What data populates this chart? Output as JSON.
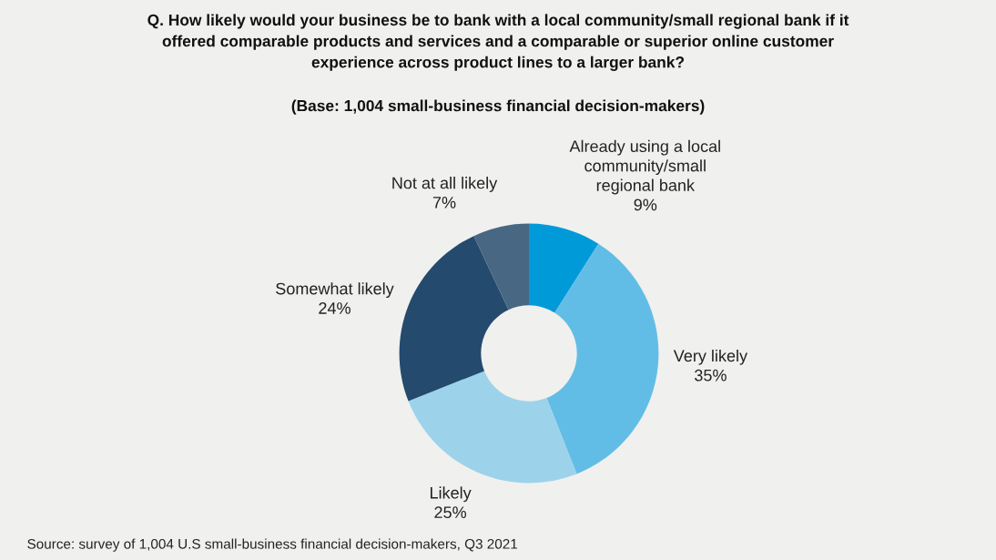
{
  "chart_data": {
    "type": "donut",
    "title": "Q. How likely would your business be to bank with a local community/small regional bank if it\noffered comparable products and services and a comparable or superior online customer\nexperience across product lines to a larger bank?",
    "subtitle": "(Base: 1,004 small-business financial decision-makers)",
    "categories": [
      "Already using a local\ncommunity/small\nregional bank",
      "Very likely",
      "Likely",
      "Somewhat likely",
      "Not at all likely"
    ],
    "values": [
      9,
      35,
      25,
      24,
      7
    ],
    "colors": [
      "#009ad9",
      "#62bde6",
      "#9cd3ea",
      "#244a6e",
      "#486783"
    ],
    "value_labels": [
      "9%",
      "35%",
      "25%",
      "24%",
      "7%"
    ],
    "annotations": [
      "Source: survey of 1,004 U.S small-business financial decision-makers, Q3 2021"
    ],
    "legend": false
  }
}
